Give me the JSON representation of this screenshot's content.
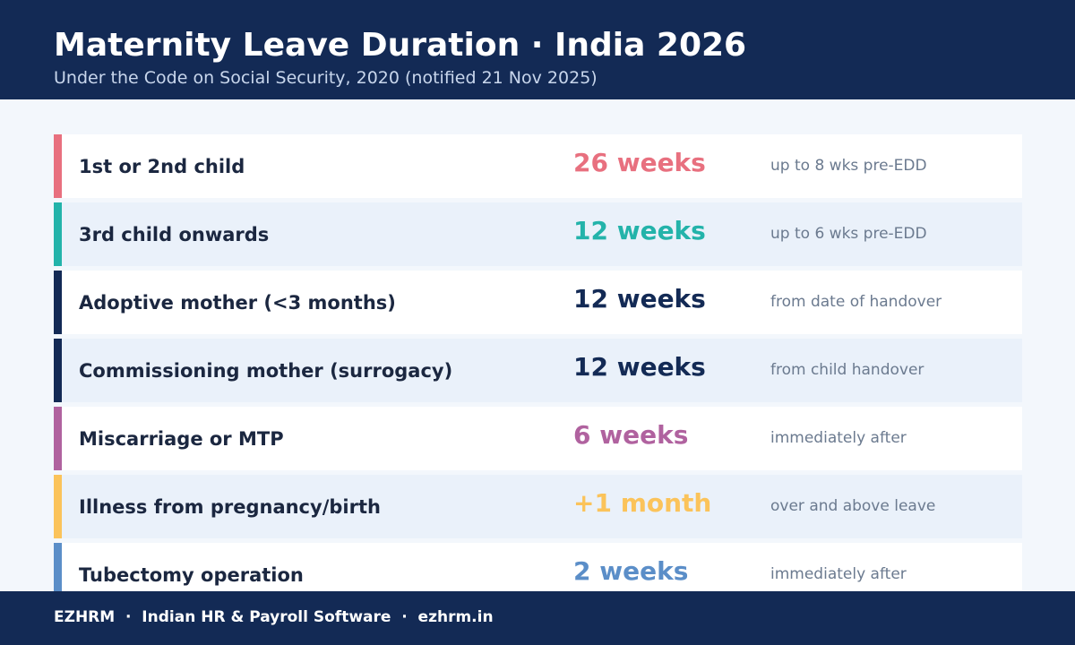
{
  "header": {
    "title": "Maternity Leave Duration · India 2026",
    "subtitle": "Under the Code on Social Security, 2020 (notified 21 Nov 2025)"
  },
  "rows": [
    {
      "label": "1st or 2nd child",
      "duration": "26 weeks",
      "note": "up to 8 wks pre-EDD",
      "color": "#e8707f"
    },
    {
      "label": "3rd child onwards",
      "duration": "12 weeks",
      "note": "up to 6 wks pre-EDD",
      "color": "#23b3aa"
    },
    {
      "label": "Adoptive mother (<3 months)",
      "duration": "12 weeks",
      "note": "from date of handover",
      "color": "#132a55"
    },
    {
      "label": "Commissioning mother (surrogacy)",
      "duration": "12 weeks",
      "note": "from child handover",
      "color": "#132a55"
    },
    {
      "label": "Miscarriage or MTP",
      "duration": "6 weeks",
      "note": "immediately after",
      "color": "#b0629f"
    },
    {
      "label": "Illness from pregnancy/birth",
      "duration": "+1 month",
      "note": "over and above leave",
      "color": "#fbc35a"
    },
    {
      "label": "Tubectomy operation",
      "duration": "2 weeks",
      "note": "immediately after",
      "color": "#5b8ec8"
    }
  ],
  "footer": {
    "text": "EZHRM  ·  Indian HR & Payroll Software  ·  ezhrm.in"
  }
}
